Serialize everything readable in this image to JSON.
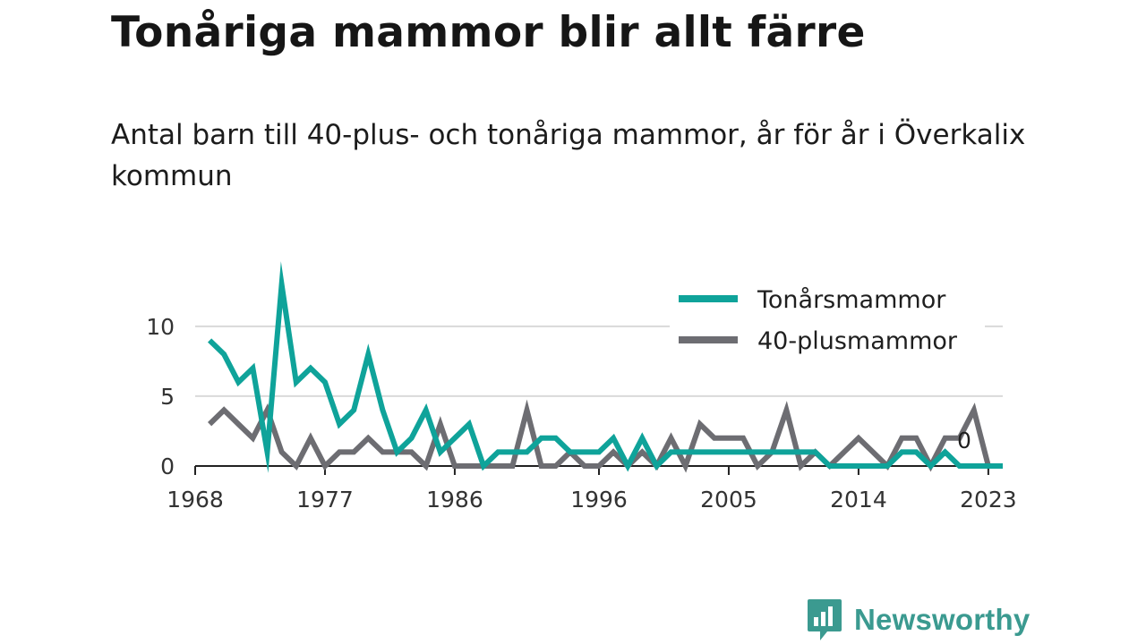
{
  "header": {
    "title": "Tonåriga mammor blir allt färre",
    "subtitle": "Antal barn till 40-plus- och tonåriga mammor, år för år i Överkalix kommun"
  },
  "brand": {
    "name": "Newsworthy"
  },
  "chart_data": {
    "type": "line",
    "title": "Tonåriga mammor blir allt färre",
    "subtitle": "Antal barn till 40-plus- och tonåriga mammor, år för år i Överkalix kommun",
    "xlabel": "",
    "ylabel": "",
    "xlim": [
      1968,
      2024
    ],
    "ylim": [
      0,
      13
    ],
    "x_ticks": [
      1968,
      1977,
      1986,
      1996,
      2005,
      2014,
      2023
    ],
    "y_ticks": [
      0,
      5,
      10
    ],
    "grid": "horizontal",
    "legend_position": "top-right",
    "x": [
      1969,
      1970,
      1971,
      1972,
      1973,
      1974,
      1975,
      1976,
      1977,
      1978,
      1979,
      1980,
      1981,
      1982,
      1983,
      1984,
      1985,
      1986,
      1987,
      1988,
      1989,
      1990,
      1991,
      1992,
      1993,
      1994,
      1995,
      1996,
      1997,
      1998,
      1999,
      2000,
      2001,
      2002,
      2003,
      2004,
      2005,
      2006,
      2007,
      2008,
      2009,
      2010,
      2011,
      2012,
      2013,
      2014,
      2015,
      2016,
      2017,
      2018,
      2019,
      2020,
      2021,
      2022,
      2023,
      2024
    ],
    "series": [
      {
        "name": "Tonårsmammor",
        "color": "#0fa39a",
        "values": [
          9,
          8,
          6,
          7,
          1,
          13,
          6,
          7,
          6,
          3,
          4,
          8,
          4,
          1,
          2,
          4,
          1,
          2,
          3,
          0,
          1,
          1,
          1,
          2,
          2,
          1,
          1,
          1,
          2,
          0,
          2,
          0,
          1,
          1,
          1,
          1,
          1,
          1,
          1,
          1,
          1,
          1,
          1,
          0,
          0,
          0,
          0,
          0,
          1,
          1,
          0,
          1,
          0,
          0,
          0,
          0
        ]
      },
      {
        "name": "40-plusmammor",
        "color": "#6d6d72",
        "values": [
          3,
          4,
          3,
          2,
          4,
          1,
          0,
          2,
          0,
          1,
          1,
          2,
          1,
          1,
          1,
          0,
          3,
          0,
          0,
          0,
          0,
          0,
          4,
          0,
          0,
          1,
          0,
          0,
          1,
          0,
          1,
          0,
          2,
          0,
          3,
          2,
          2,
          2,
          0,
          1,
          4,
          0,
          1,
          0,
          1,
          2,
          1,
          0,
          2,
          2,
          0,
          2,
          2,
          4,
          0,
          null
        ]
      }
    ],
    "annotations": [
      {
        "text": "0"
      }
    ]
  }
}
